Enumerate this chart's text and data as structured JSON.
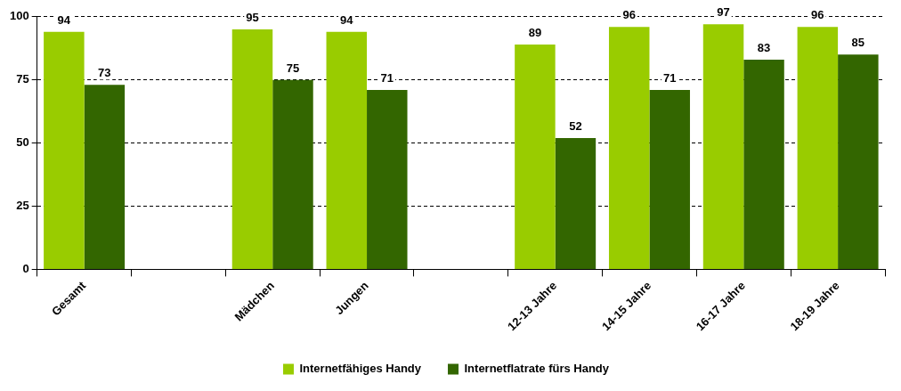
{
  "chart_data": {
    "type": "bar",
    "categories": [
      "Gesamt",
      null,
      "Mädchen",
      "Jungen",
      null,
      "12-13 Jahre",
      "14-15 Jahre",
      "16-17 Jahre",
      "18-19 Jahre"
    ],
    "series": [
      {
        "name": "Internetfähiges Handy",
        "color": "#99cc00",
        "values": [
          94,
          null,
          95,
          94,
          null,
          89,
          96,
          97,
          96
        ]
      },
      {
        "name": "Internetflatrate fürs Handy",
        "color": "#336600",
        "values": [
          73,
          null,
          75,
          71,
          null,
          52,
          71,
          83,
          85
        ]
      }
    ],
    "ylim": [
      0,
      100
    ],
    "yticks": [
      0,
      25,
      50,
      75,
      100
    ],
    "grid": "y",
    "legend": "bottom",
    "data_labels": true
  }
}
